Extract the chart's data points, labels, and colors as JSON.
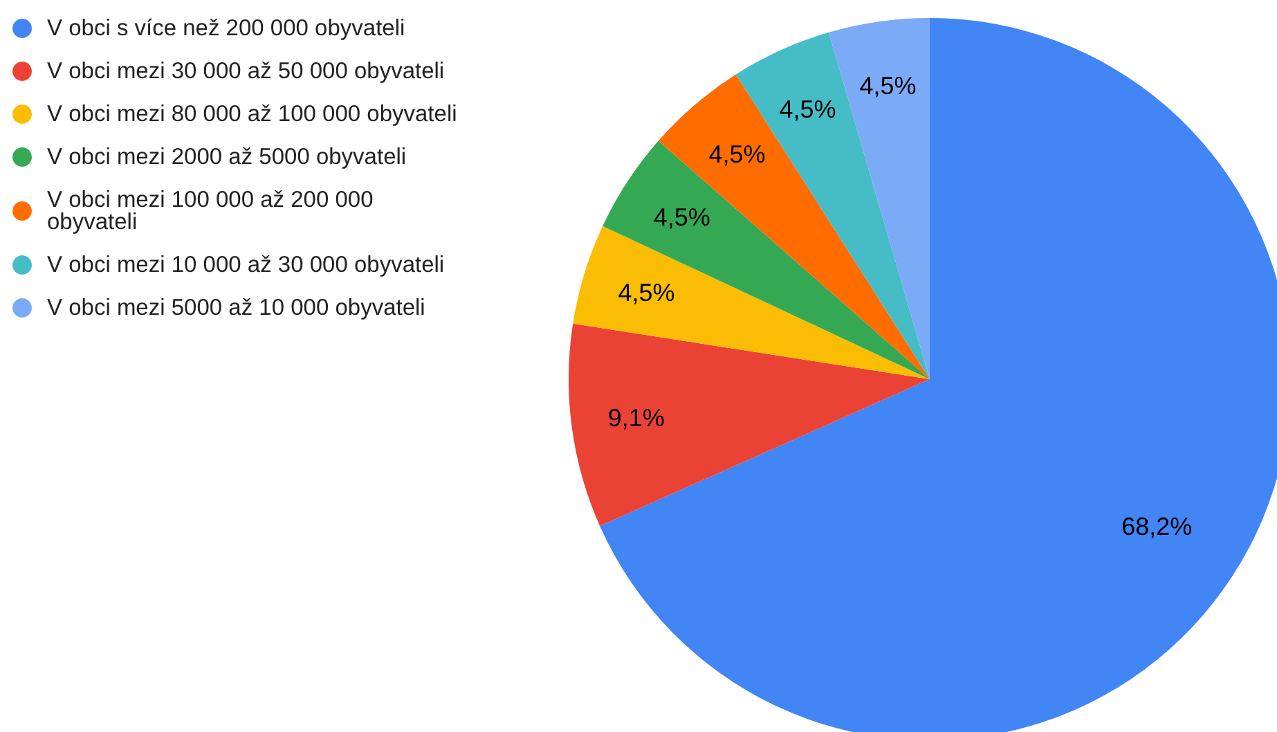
{
  "chart_data": {
    "type": "pie",
    "categories": [
      "V obci s více než 200 000 obyvateli",
      "V obci mezi 30 000 až 50 000 obyvateli",
      "V obci mezi 80 000 až 100 000 obyvateli",
      "V obci mezi 2000 až 5000 obyvateli",
      "V obci mezi 100 000 až 200 000 obyvateli",
      "V obci mezi 10 000 až 30 000 obyvateli",
      "V obci mezi 5000 až 10 000 obyvateli"
    ],
    "values": [
      68.2,
      9.1,
      4.5,
      4.5,
      4.5,
      4.5,
      4.5
    ],
    "value_labels": [
      "68,2%",
      "9,1%",
      "4,5%",
      "4,5%",
      "4,5%",
      "4,5%",
      "4,5%"
    ],
    "colors": [
      "#4285f4",
      "#ea4335",
      "#fbbc04",
      "#34a853",
      "#ff6d01",
      "#46bdc6",
      "#7baaf7"
    ],
    "legend": "top left"
  }
}
